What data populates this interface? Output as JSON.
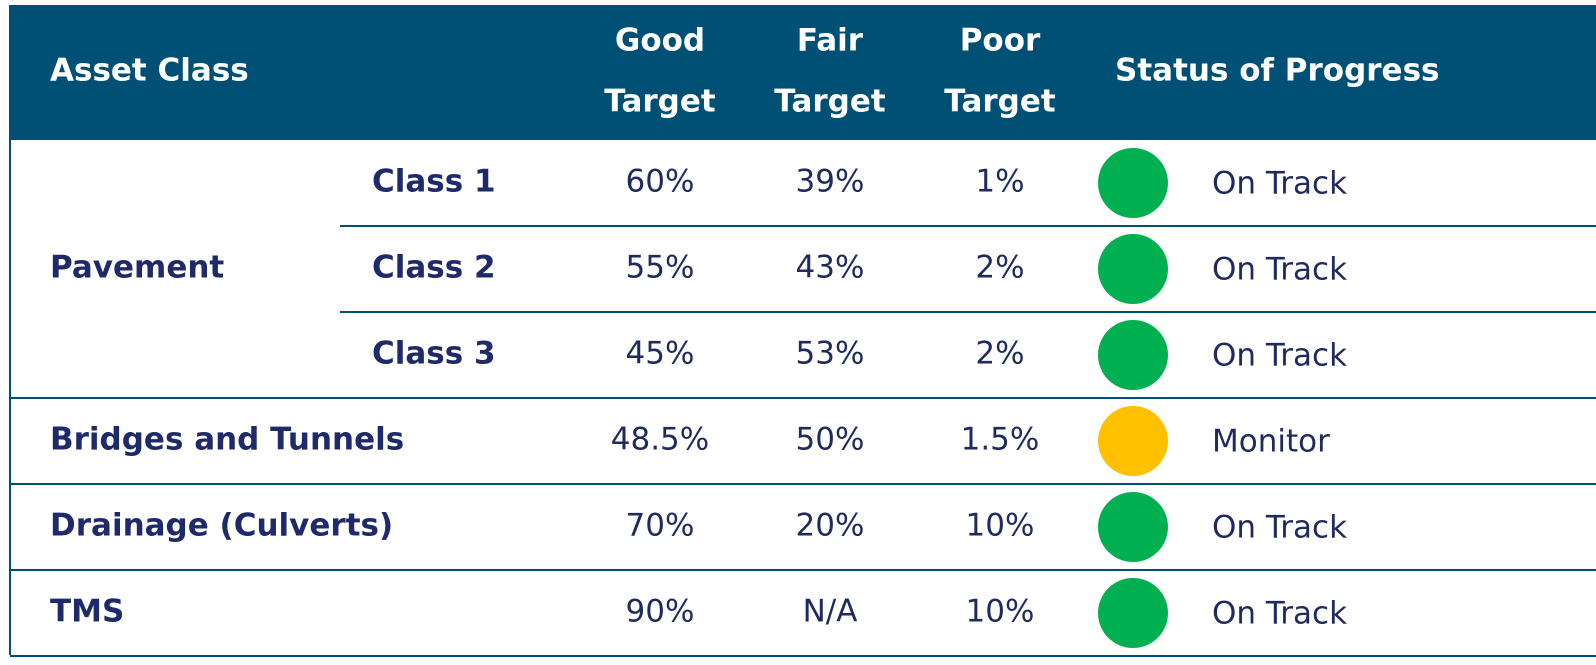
{
  "table": {
    "header": {
      "asset_class": "Asset Class",
      "good": [
        "Good",
        "Target"
      ],
      "fair": [
        "Fair",
        "Target"
      ],
      "poor": [
        "Poor",
        "Target"
      ],
      "status": "Status of Progress"
    },
    "rows": [
      {
        "asset": "Pavement",
        "subrows": [
          {
            "class": "Class 1",
            "good": "60%",
            "fair": "39%",
            "poor": "1%",
            "status": "On Track",
            "color": "#00b050"
          },
          {
            "class": "Class 2",
            "good": "55%",
            "fair": "43%",
            "poor": "2%",
            "status": "On Track",
            "color": "#00b050"
          },
          {
            "class": "Class 3",
            "good": "45%",
            "fair": "53%",
            "poor": "2%",
            "status": "On Track",
            "color": "#00b050"
          }
        ]
      },
      {
        "asset": "Bridges and Tunnels",
        "good": "48.5%",
        "fair": "50%",
        "poor": "1.5%",
        "status": "Monitor",
        "color": "#ffc000"
      },
      {
        "asset": "Drainage (Culverts)",
        "good": "70%",
        "fair": "20%",
        "poor": "10%",
        "status": "On Track",
        "color": "#00b050"
      },
      {
        "asset": "TMS",
        "good": "90%",
        "fair": "N/A",
        "poor": "10%",
        "status": "On Track",
        "color": "#00b050"
      }
    ]
  }
}
